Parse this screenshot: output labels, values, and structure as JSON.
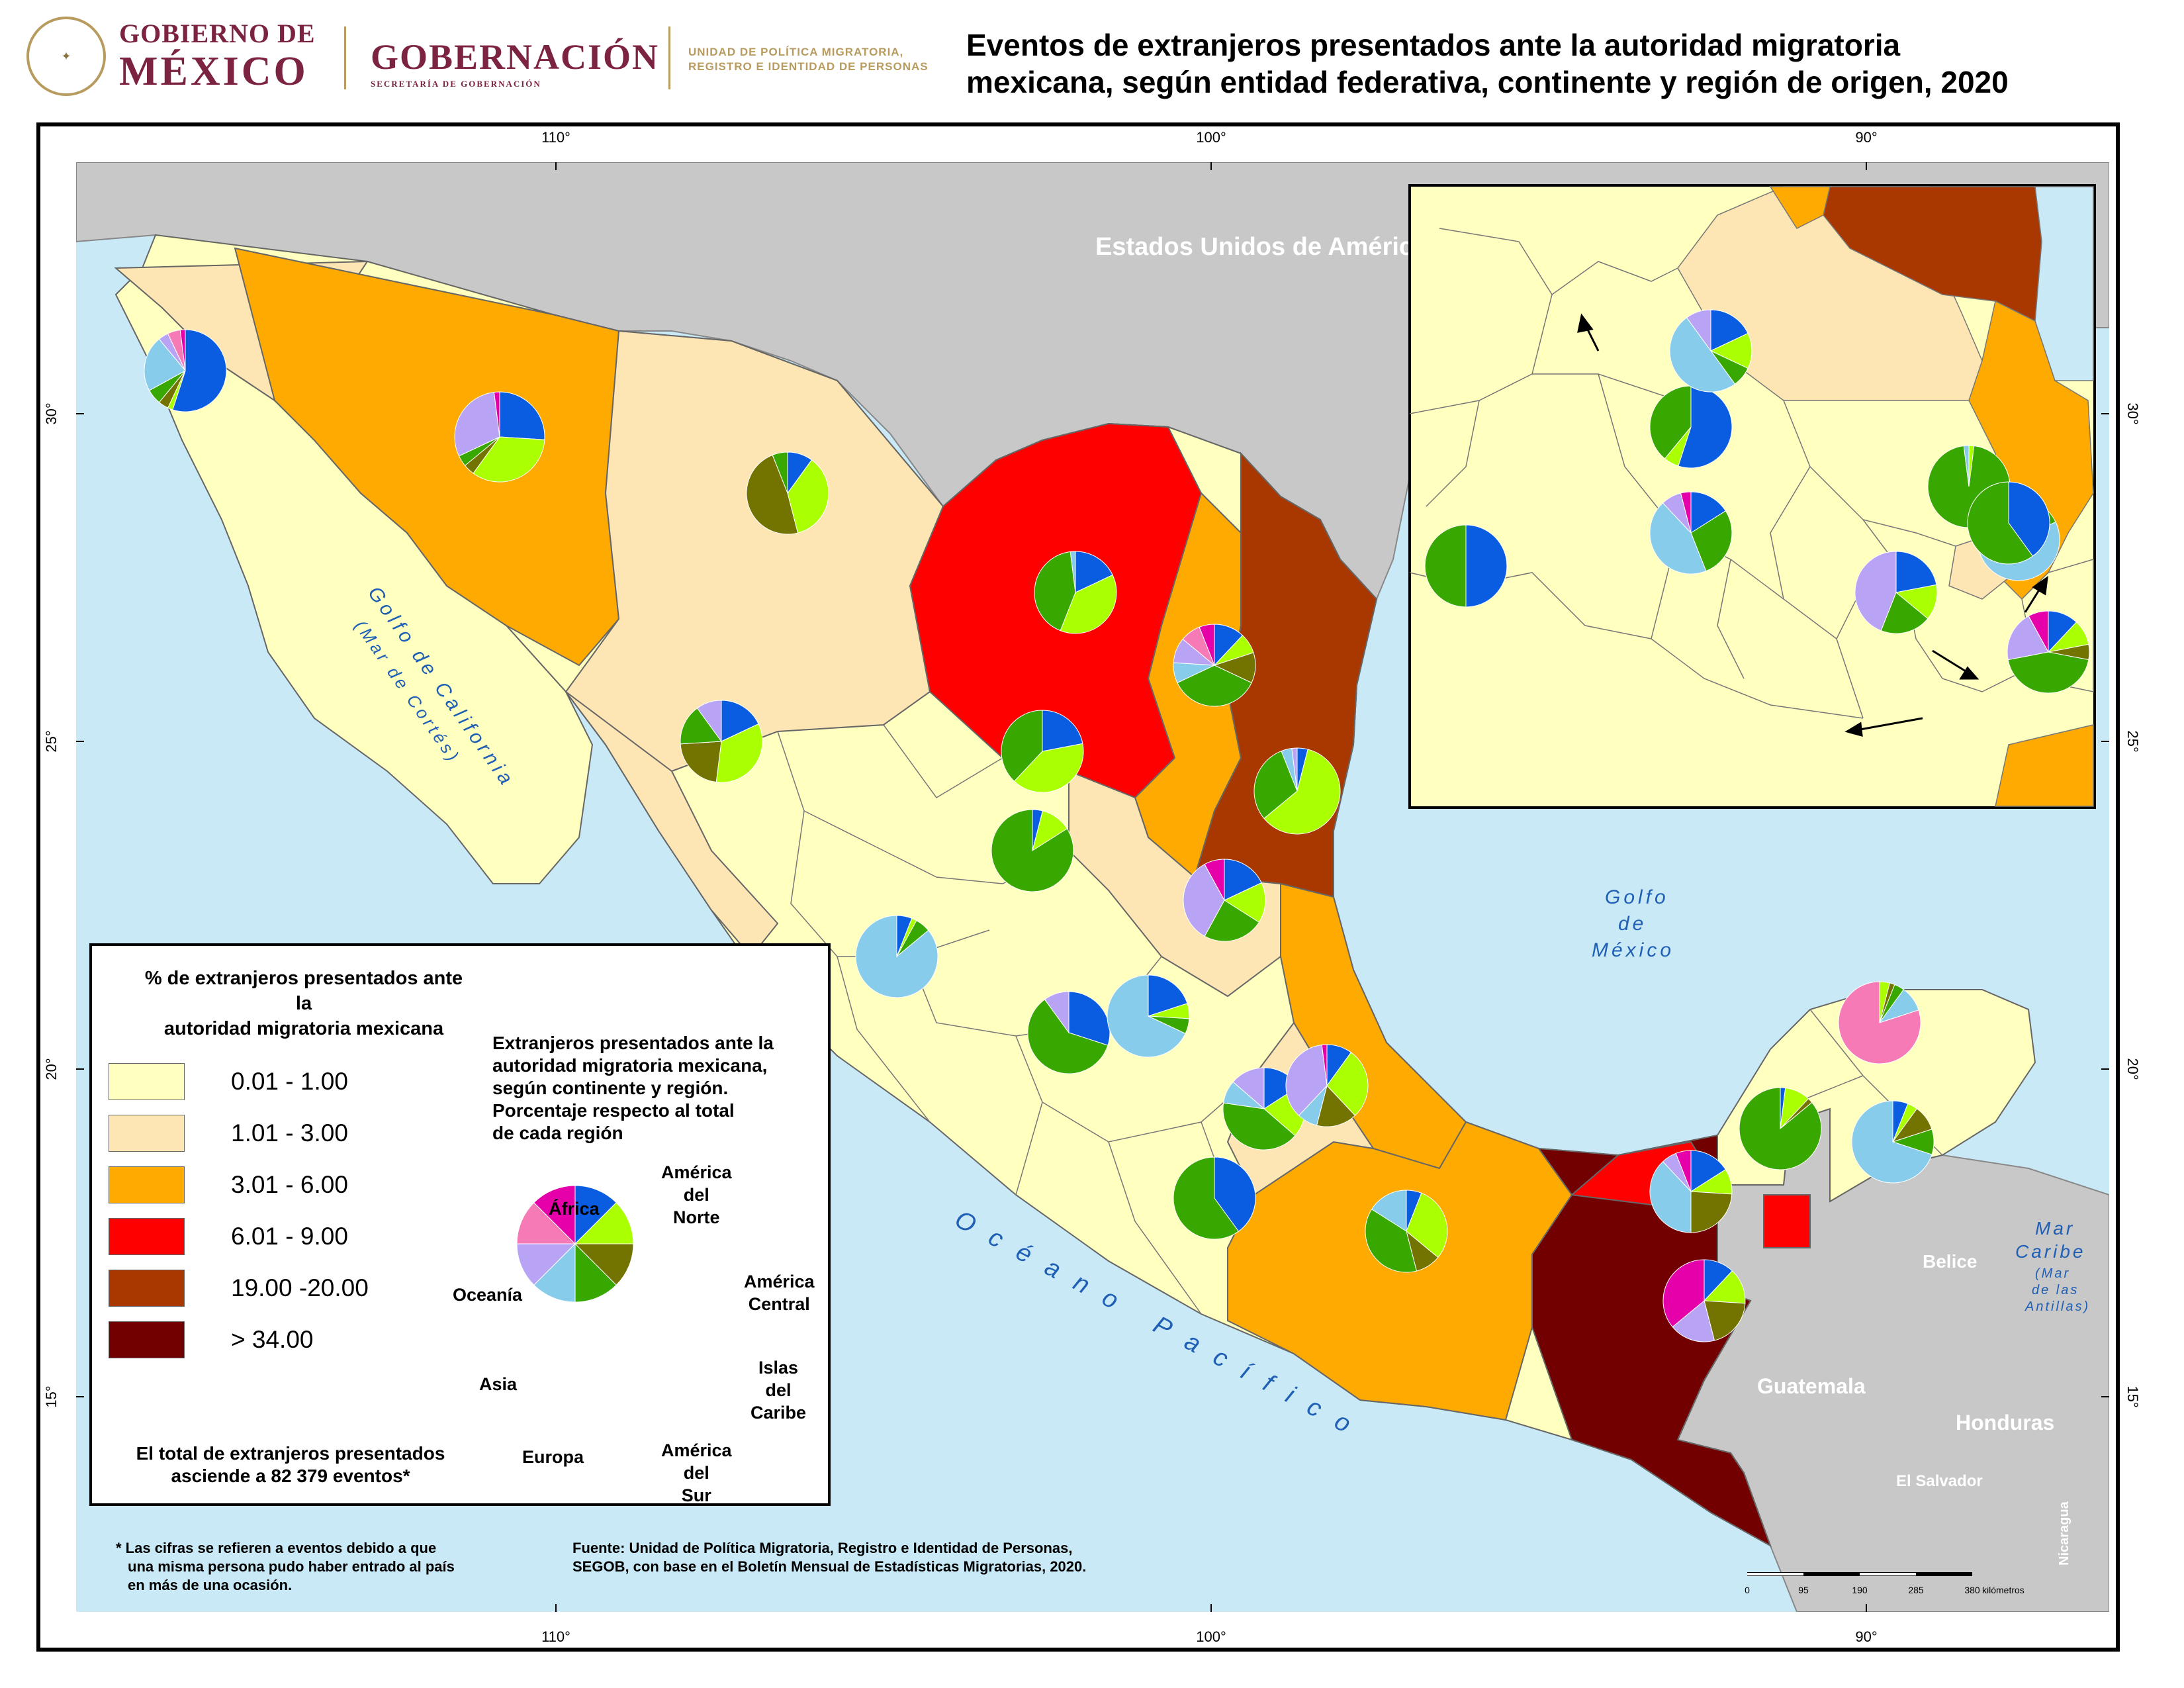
{
  "header": {
    "gov_line1": "GOBIERNO DE",
    "gov_line2": "MÉXICO",
    "ministry": "GOBERNACIÓN",
    "ministry_sub": "SECRETARÍA DE GOBERNACIÓN",
    "unit_line1": "UNIDAD DE POLÍTICA MIGRATORIA,",
    "unit_line2": "REGISTRO E IDENTIDAD DE PERSONAS",
    "title_line1": "Eventos de extranjeros presentados ante la autoridad migratoria",
    "title_line2": "mexicana, según entidad federativa, continente y región de origen, 2020"
  },
  "map": {
    "lon_ticks": [
      "110°",
      "100°",
      "90°"
    ],
    "lat_ticks": [
      "30°",
      "25°",
      "20°",
      "15°"
    ],
    "labels": {
      "usa": "Estados Unidos de América",
      "gulf_california_1": "Golfo de California",
      "gulf_california_2": "(Mar de Cortés)",
      "gulf_mexico_1": "Golfo",
      "gulf_mexico_2": "de",
      "gulf_mexico_3": "México",
      "pacific": "Océano Pacífico",
      "caribbean_1": "Mar",
      "caribbean_2": "Caribe",
      "caribbean_3": "(Mar",
      "caribbean_4": "de las",
      "caribbean_5": "Antillas)",
      "belize": "Belice",
      "guatemala": "Guatemala",
      "honduras": "Honduras",
      "el_salvador": "El Salvador",
      "nicaragua": "Nicaragua"
    },
    "scale": {
      "ticks": [
        "0",
        "95",
        "190",
        "285",
        "380"
      ],
      "unit": "kilómetros"
    },
    "colors": {
      "sea": "#c9e9f6",
      "other_country": "#c8c8c8",
      "c1": "#ffffc0",
      "c2": "#fde6b4",
      "c3": "#ffaa00",
      "c4": "#ff0000",
      "c5": "#a83800",
      "c6": "#730000"
    }
  },
  "region_colors": {
    "america_norte": "#0a5ce0",
    "america_central": "#aaff00",
    "islas_caribe": "#737300",
    "america_sur": "#38a800",
    "europa": "#87ccea",
    "asia": "#b9a3f5",
    "oceania": "#f57ab6",
    "africa": "#e600a9"
  },
  "legend": {
    "title_line1": "% de extranjeros presentados ante la",
    "title_line2": "autoridad migratoria mexicana",
    "classes": [
      {
        "label": "0.01 -  1.00",
        "color": "#ffffc0"
      },
      {
        "label": "1.01 -  3.00",
        "color": "#fde6b4"
      },
      {
        "label": "3.01 -  6.00",
        "color": "#ffaa00"
      },
      {
        "label": "6.01 -  9.00",
        "color": "#ff0000"
      },
      {
        "label": "19.00 -20.00",
        "color": "#a83800"
      },
      {
        "label": "> 34.00",
        "color": "#730000"
      }
    ],
    "pie_title_l1": "Extranjeros presentados ante la",
    "pie_title_l2": "autoridad migratoria mexicana,",
    "pie_title_l3": "según continente y región.",
    "pie_title_l4": "Porcentaje respecto al total",
    "pie_title_l5": "de cada región",
    "regions": {
      "norte_l1": "América",
      "norte_l2": "del",
      "norte_l3": "Norte",
      "central_l1": "América",
      "central_l2": "Central",
      "caribe_l1": "Islas",
      "caribe_l2": "del",
      "caribe_l3": "Caribe",
      "sur_l1": "América",
      "sur_l2": "del",
      "sur_l3": "Sur",
      "europa": "Europa",
      "asia": "Asia",
      "oceania": "Oceanía",
      "africa": "África"
    },
    "total_l1": "El total de extranjeros presentados",
    "total_l2": "asciende a 82 379 eventos*"
  },
  "footnote_l1": "* Las cifras se refieren a eventos debido a que",
  "footnote_l2": "una misma persona pudo haber entrado al país",
  "footnote_l3": "en más de una ocasión.",
  "source_l1": "Fuente: Unidad de Política Migratoria, Registro e Identidad de Personas,",
  "source_l2": "SEGOB, con base en el Boletín Mensual de Estadísticas Migratorias, 2020."
}
